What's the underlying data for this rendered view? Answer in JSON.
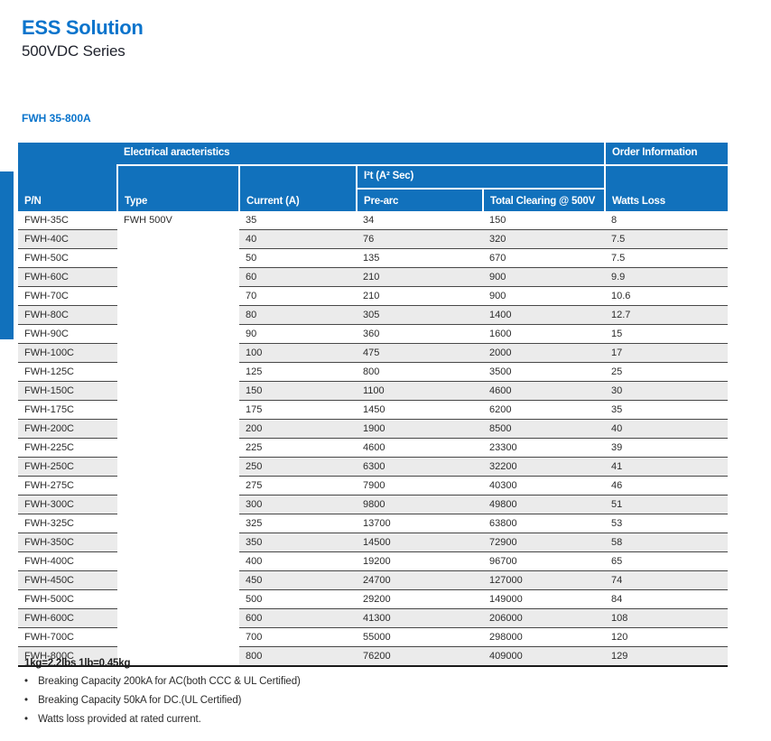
{
  "page": {
    "title": "ESS Solution",
    "subtitle": "500VDC Series",
    "section_label": "FWH 35-800A"
  },
  "colors": {
    "brand_blue": "#0a74cc",
    "table_header_blue": "#1171bc",
    "row_stripe_gray": "#ebebeb"
  },
  "table": {
    "header": {
      "pn": "P/N",
      "electrical_group": "Electrical aracteristics",
      "order_group": "Order Information",
      "type": "Type",
      "current": "Current (A)",
      "i2t_group": "I²t (A² Sec)",
      "pre_arc": "Pre-arc",
      "total_clearing": "Total Clearing @ 500V",
      "watts_loss": "Watts Loss"
    },
    "type_value": "FWH 500V",
    "rows": [
      {
        "pn": "FWH-35C",
        "current": "35",
        "pre_arc": "34",
        "total_clearing": "150",
        "watts_loss": "8"
      },
      {
        "pn": "FWH-40C",
        "current": "40",
        "pre_arc": "76",
        "total_clearing": "320",
        "watts_loss": "7.5"
      },
      {
        "pn": "FWH-50C",
        "current": "50",
        "pre_arc": "135",
        "total_clearing": "670",
        "watts_loss": "7.5"
      },
      {
        "pn": "FWH-60C",
        "current": "60",
        "pre_arc": "210",
        "total_clearing": "900",
        "watts_loss": "9.9"
      },
      {
        "pn": "FWH-70C",
        "current": "70",
        "pre_arc": "210",
        "total_clearing": "900",
        "watts_loss": "10.6"
      },
      {
        "pn": "FWH-80C",
        "current": "80",
        "pre_arc": "305",
        "total_clearing": "1400",
        "watts_loss": "12.7"
      },
      {
        "pn": "FWH-90C",
        "current": "90",
        "pre_arc": "360",
        "total_clearing": "1600",
        "watts_loss": "15"
      },
      {
        "pn": "FWH-100C",
        "current": "100",
        "pre_arc": "475",
        "total_clearing": "2000",
        "watts_loss": "17"
      },
      {
        "pn": "FWH-125C",
        "current": "125",
        "pre_arc": "800",
        "total_clearing": "3500",
        "watts_loss": "25"
      },
      {
        "pn": "FWH-150C",
        "current": "150",
        "pre_arc": "1100",
        "total_clearing": "4600",
        "watts_loss": "30"
      },
      {
        "pn": "FWH-175C",
        "current": "175",
        "pre_arc": "1450",
        "total_clearing": "6200",
        "watts_loss": "35"
      },
      {
        "pn": "FWH-200C",
        "current": "200",
        "pre_arc": "1900",
        "total_clearing": "8500",
        "watts_loss": "40"
      },
      {
        "pn": "FWH-225C",
        "current": "225",
        "pre_arc": "4600",
        "total_clearing": "23300",
        "watts_loss": "39"
      },
      {
        "pn": "FWH-250C",
        "current": "250",
        "pre_arc": "6300",
        "total_clearing": "32200",
        "watts_loss": "41"
      },
      {
        "pn": "FWH-275C",
        "current": "275",
        "pre_arc": "7900",
        "total_clearing": "40300",
        "watts_loss": "46"
      },
      {
        "pn": "FWH-300C",
        "current": "300",
        "pre_arc": "9800",
        "total_clearing": "49800",
        "watts_loss": "51"
      },
      {
        "pn": "FWH-325C",
        "current": "325",
        "pre_arc": "13700",
        "total_clearing": "63800",
        "watts_loss": "53"
      },
      {
        "pn": "FWH-350C",
        "current": "350",
        "pre_arc": "14500",
        "total_clearing": "72900",
        "watts_loss": "58"
      },
      {
        "pn": "FWH-400C",
        "current": "400",
        "pre_arc": "19200",
        "total_clearing": "96700",
        "watts_loss": "65"
      },
      {
        "pn": "FWH-450C",
        "current": "450",
        "pre_arc": "24700",
        "total_clearing": "127000",
        "watts_loss": "74"
      },
      {
        "pn": "FWH-500C",
        "current": "500",
        "pre_arc": "29200",
        "total_clearing": "149000",
        "watts_loss": "84"
      },
      {
        "pn": "FWH-600C",
        "current": "600",
        "pre_arc": "41300",
        "total_clearing": "206000",
        "watts_loss": "108"
      },
      {
        "pn": "FWH-700C",
        "current": "700",
        "pre_arc": "55000",
        "total_clearing": "298000",
        "watts_loss": "120"
      },
      {
        "pn": "FWH-800C",
        "current": "800",
        "pre_arc": "76200",
        "total_clearing": "409000",
        "watts_loss": "129"
      }
    ]
  },
  "notes": {
    "conversion": "1kg=2.2lbs  1lb=0.45kg",
    "bullet_char": "•",
    "bullets": [
      "Breaking Capacity 200kA for AC(both CCC & UL Certified)",
      "Breaking Capacity 50kA for DC.(UL Certified)",
      "Watts loss provided at rated current."
    ]
  }
}
